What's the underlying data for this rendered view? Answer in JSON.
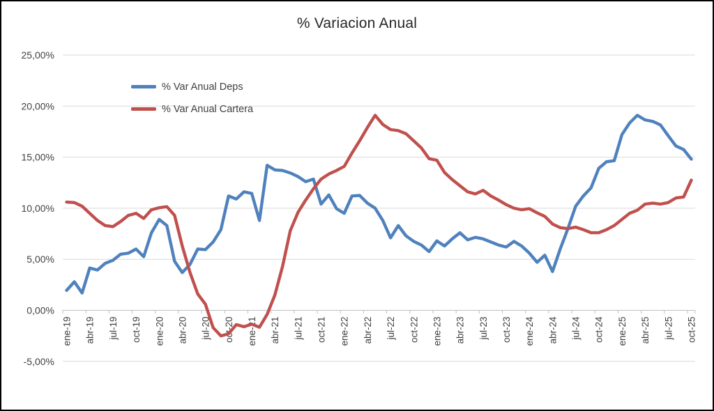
{
  "chart_data": {
    "type": "line",
    "title": "% Variacion Anual",
    "xlabel": "",
    "ylabel": "",
    "grid": true,
    "legend_position": "inside-top-left",
    "background_color": "#FFFFFF",
    "frame_border_color": "#000000",
    "gridline_color": "#D9D9D9",
    "axis_line_color": "#BFBFBF",
    "tick_text_color": "#404040",
    "title_color": "#262626",
    "y_axis": {
      "min": -5,
      "max": 25,
      "step": 5,
      "tick_labels": [
        "25,00%",
        "20,00%",
        "15,00%",
        "10,00%",
        "5,00%",
        "0,00%",
        "-5,00%"
      ]
    },
    "x_tick_labels": [
      "ene-19",
      "abr-19",
      "jul-19",
      "oct-19",
      "ene-20",
      "abr-20",
      "jul-20",
      "oct-20",
      "ene-21",
      "abr-21",
      "jul-21",
      "oct-21",
      "ene-22",
      "abr-22",
      "jul-22",
      "oct-22",
      "ene-23",
      "abr-23",
      "jul-23",
      "oct-23",
      "ene-24",
      "abr-24",
      "jul-24",
      "oct-24",
      "ene-25",
      "abr-25",
      "jul-25",
      "oct-25"
    ],
    "x": [
      "ene-19",
      "feb-19",
      "mar-19",
      "abr-19",
      "may-19",
      "jun-19",
      "jul-19",
      "ago-19",
      "sep-19",
      "oct-19",
      "nov-19",
      "dic-19",
      "ene-20",
      "feb-20",
      "mar-20",
      "abr-20",
      "may-20",
      "jun-20",
      "jul-20",
      "ago-20",
      "sep-20",
      "oct-20",
      "nov-20",
      "dic-20",
      "ene-21",
      "feb-21",
      "mar-21",
      "abr-21",
      "may-21",
      "jun-21",
      "jul-21",
      "ago-21",
      "sep-21",
      "oct-21",
      "nov-21",
      "dic-21",
      "ene-22",
      "feb-22",
      "mar-22",
      "abr-22",
      "may-22",
      "jun-22",
      "jul-22",
      "ago-22",
      "sep-22",
      "oct-22",
      "nov-22",
      "dic-22",
      "ene-23",
      "feb-23",
      "mar-23",
      "abr-23",
      "may-23",
      "jun-23",
      "jul-23",
      "ago-23",
      "sep-23",
      "oct-23",
      "nov-23",
      "dic-23",
      "ene-24",
      "feb-24",
      "mar-24",
      "abr-24",
      "may-24",
      "jun-24",
      "jul-24",
      "ago-24",
      "sep-24",
      "oct-24",
      "nov-24",
      "dic-24",
      "ene-25",
      "feb-25",
      "mar-25",
      "abr-25",
      "may-25",
      "jun-25",
      "jul-25",
      "ago-25",
      "sep-25",
      "oct-25"
    ],
    "series": [
      {
        "name": "% Var Anual Deps",
        "color": "#4F81BD",
        "values": [
          1.95,
          2.8,
          1.7,
          4.15,
          3.95,
          4.6,
          4.9,
          5.5,
          5.6,
          6.0,
          5.25,
          7.6,
          8.9,
          8.3,
          4.8,
          3.7,
          4.5,
          6.0,
          5.95,
          6.7,
          7.9,
          11.2,
          10.9,
          11.6,
          11.45,
          8.8,
          14.2,
          13.75,
          13.7,
          13.45,
          13.1,
          12.6,
          12.85,
          10.4,
          11.3,
          9.95,
          9.5,
          11.2,
          11.25,
          10.5,
          10.0,
          8.8,
          7.1,
          8.3,
          7.3,
          6.75,
          6.4,
          5.75,
          6.8,
          6.3,
          7.0,
          7.6,
          6.9,
          7.15,
          7.0,
          6.7,
          6.4,
          6.2,
          6.75,
          6.3,
          5.6,
          4.7,
          5.4,
          3.8,
          6.0,
          8.0,
          10.2,
          11.2,
          12.0,
          13.9,
          14.55,
          14.65,
          17.2,
          18.35,
          19.1,
          18.65,
          18.5,
          18.15,
          17.1,
          16.1,
          15.75,
          14.8
        ]
      },
      {
        "name": "% Var Anual Cartera",
        "color": "#C0504D",
        "values": [
          10.6,
          10.55,
          10.2,
          9.5,
          8.8,
          8.3,
          8.2,
          8.7,
          9.3,
          9.5,
          9.0,
          9.85,
          10.05,
          10.15,
          9.3,
          6.3,
          3.7,
          1.6,
          0.6,
          -1.7,
          -2.5,
          -2.3,
          -1.4,
          -1.6,
          -1.35,
          -1.65,
          -0.4,
          1.5,
          4.3,
          7.8,
          9.6,
          10.8,
          11.9,
          12.85,
          13.35,
          13.7,
          14.1,
          15.4,
          16.6,
          17.9,
          19.1,
          18.2,
          17.7,
          17.6,
          17.3,
          16.6,
          15.9,
          14.85,
          14.7,
          13.5,
          12.8,
          12.2,
          11.6,
          11.4,
          11.75,
          11.2,
          10.8,
          10.35,
          10.0,
          9.85,
          9.95,
          9.55,
          9.2,
          8.45,
          8.1,
          8.0,
          8.15,
          7.9,
          7.6,
          7.6,
          7.9,
          8.3,
          8.9,
          9.5,
          9.8,
          10.4,
          10.5,
          10.4,
          10.55,
          11.0,
          11.1,
          12.75
        ]
      }
    ]
  }
}
